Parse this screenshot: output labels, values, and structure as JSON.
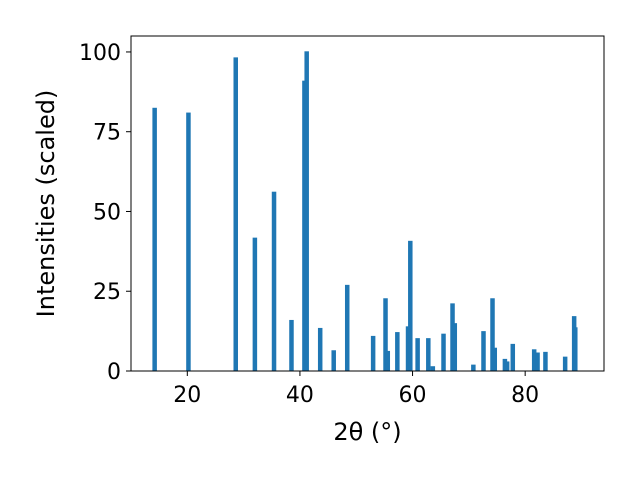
{
  "chart_data": {
    "type": "bar",
    "xlabel": "2θ (°)",
    "ylabel": "Intensities (scaled)",
    "xlim": [
      10,
      94
    ],
    "ylim": [
      0,
      105
    ],
    "xticks": [
      20,
      40,
      60,
      80
    ],
    "yticks": [
      0,
      25,
      50,
      75,
      100
    ],
    "grid": false,
    "bar_color": "#1f77b4",
    "x": [
      14.2,
      20.2,
      28.6,
      32.0,
      35.4,
      38.5,
      40.8,
      41.2,
      43.6,
      46.0,
      48.4,
      53.0,
      55.2,
      55.6,
      57.3,
      59.2,
      59.6,
      60.9,
      62.8,
      63.6,
      65.5,
      67.1,
      67.5,
      70.8,
      72.6,
      74.2,
      74.6,
      76.4,
      76.8,
      77.8,
      81.6,
      82.2,
      83.6,
      87.1,
      88.7,
      88.9
    ],
    "values": [
      82.5,
      81,
      98.3,
      41.8,
      56.2,
      16,
      91,
      100.2,
      13.5,
      6.5,
      27,
      11,
      22.8,
      6.3,
      12.2,
      14,
      40.8,
      10.3,
      10.3,
      1.5,
      11.7,
      21.2,
      15,
      2,
      12.5,
      22.8,
      7.3,
      3.8,
      3,
      8.5,
      6.8,
      5.8,
      6,
      4.5,
      17.2,
      13.7
    ]
  }
}
